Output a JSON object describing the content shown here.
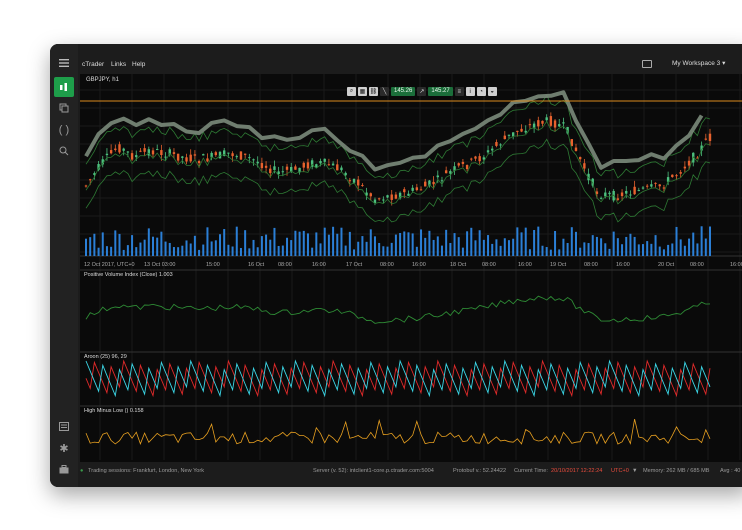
{
  "menu": {
    "app": "cTrader",
    "links": "Links",
    "help": "Help"
  },
  "workspace": "My Workspace 3 ▾",
  "symbol": "GBPJPY, h1",
  "toolbar": {
    "bid_price": "145.26",
    "ask_price": "145.27"
  },
  "time_axis": [
    "12 Oct 2017, UTC+0",
    "13 Oct 03:00",
    "15:00",
    "16 Oct",
    "08:00",
    "16:00",
    "17 Oct",
    "08:00",
    "16:00",
    "18 Oct",
    "08:00",
    "16:00",
    "19 Oct",
    "08:00",
    "16:00",
    "20 Oct",
    "08:00",
    "16:00"
  ],
  "panels": {
    "pvi": "Positive Volume Index (Close) 1.003",
    "aroon": "Aroon (25) 96, 29",
    "hml": "High Minus Low () 0.158"
  },
  "colors": {
    "up": "#4cbf7e",
    "down": "#e8622e",
    "aroon_up": "#3bd6e6",
    "aroon_down": "#e02a2a",
    "hml": "#e8a020",
    "pvi": "#2e8b35",
    "volume": "#2b7fd6"
  },
  "status": {
    "sessions": "Trading sessions: Frankfurt, London, New York",
    "server": "Server (v. 52): intclient1-core.p.ctrader.com:5004",
    "protobuf": "Protobuf v.: 52.24422",
    "current_time_label": "Current Time:",
    "current_time": "20/10/2017 12:22:24",
    "tz": "UTC+0",
    "memory": "Memory: 262 MB / 685 MB",
    "avg": "Avg : 40"
  }
}
